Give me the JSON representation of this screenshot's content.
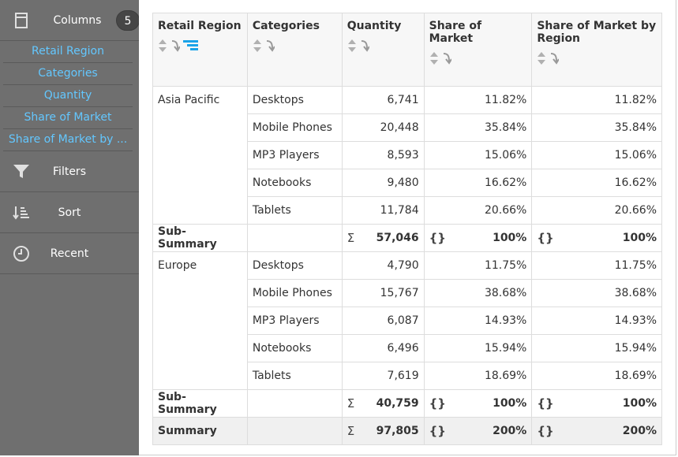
{
  "sidebar": {
    "columns_label": "Columns",
    "columns_count": "5",
    "column_items": [
      {
        "label": "Retail Region"
      },
      {
        "label": "Categories"
      },
      {
        "label": "Quantity"
      },
      {
        "label": "Share of Market"
      },
      {
        "label": "Share of Market by ..."
      }
    ],
    "filters_label": "Filters",
    "sort_label": "Sort",
    "recent_label": "Recent",
    "accent_color": "#63c7ff"
  },
  "table": {
    "headers": [
      "Retail Region",
      "Categories",
      "Quantity",
      "Share of Market",
      "Share of Market by Region"
    ],
    "groups": [
      {
        "region": "Asia Pacific",
        "rows": [
          {
            "category": "Desktops",
            "quantity": "6,741",
            "share": "11.82%",
            "share_region": "11.82%"
          },
          {
            "category": "Mobile Phones",
            "quantity": "20,448",
            "share": "35.84%",
            "share_region": "35.84%"
          },
          {
            "category": "MP3 Players",
            "quantity": "8,593",
            "share": "15.06%",
            "share_region": "15.06%"
          },
          {
            "category": "Notebooks",
            "quantity": "9,480",
            "share": "16.62%",
            "share_region": "16.62%"
          },
          {
            "category": "Tablets",
            "quantity": "11,784",
            "share": "20.66%",
            "share_region": "20.66%"
          }
        ],
        "subtotal": {
          "label": "Sub-Summary",
          "quantity": "57,046",
          "share": "100%",
          "share_region": "100%"
        }
      },
      {
        "region": "Europe",
        "rows": [
          {
            "category": "Desktops",
            "quantity": "4,790",
            "share": "11.75%",
            "share_region": "11.75%"
          },
          {
            "category": "Mobile Phones",
            "quantity": "15,767",
            "share": "38.68%",
            "share_region": "38.68%"
          },
          {
            "category": "MP3 Players",
            "quantity": "6,087",
            "share": "14.93%",
            "share_region": "14.93%"
          },
          {
            "category": "Notebooks",
            "quantity": "6,496",
            "share": "15.94%",
            "share_region": "15.94%"
          },
          {
            "category": "Tablets",
            "quantity": "7,619",
            "share": "18.69%",
            "share_region": "18.69%"
          }
        ],
        "subtotal": {
          "label": "Sub-Summary",
          "quantity": "40,759",
          "share": "100%",
          "share_region": "100%"
        }
      }
    ],
    "summary": {
      "label": "Summary",
      "quantity": "97,805",
      "share": "200%",
      "share_region": "200%"
    },
    "sum_symbol": "Σ",
    "formula_symbol": "{}"
  }
}
